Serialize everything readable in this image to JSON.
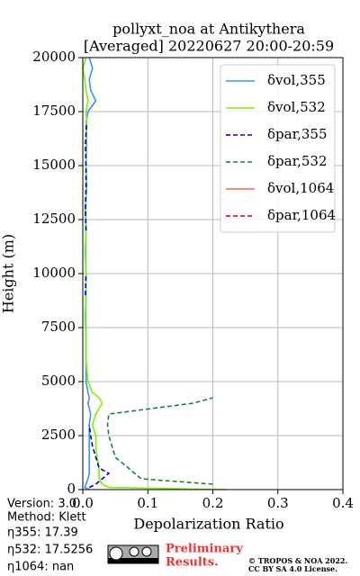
{
  "chart_data": {
    "type": "line",
    "title": "pollyxt_noa at Antikythera",
    "subtitle": "[Averaged] 20220627 20:00-20:59",
    "xlabel": "Depolarization Ratio",
    "ylabel": "Height (m)",
    "xlim": [
      0,
      0.4
    ],
    "xticks": [
      {
        "value": 0,
        "label": "0.0"
      },
      0.1,
      0.2,
      0.3,
      0.4
    ],
    "ylim": [
      0,
      20000
    ],
    "yticks": [
      0,
      2500,
      5000,
      7500,
      10000,
      12500,
      15000,
      17500,
      20000
    ],
    "grid": true,
    "legend": "upper right",
    "heights": [
      0,
      100,
      250,
      500,
      750,
      1000,
      1500,
      2000,
      2500,
      3000,
      3500,
      4000,
      4250,
      4500,
      5000,
      6000,
      7000,
      8000,
      9000,
      10000,
      11000,
      12000,
      13000,
      14000,
      15000,
      16000,
      17000,
      17500,
      18000,
      18500,
      19000,
      19500,
      20000
    ],
    "series": [
      {
        "name": "δvol,355",
        "color": "#3399ee",
        "dash": false,
        "values": [
          0.01,
          0.003,
          0.005,
          0.008,
          0.01,
          0.01,
          0.01,
          0.01,
          0.01,
          0.01,
          0.012,
          0.008,
          0.01,
          0.008,
          0.005,
          0.005,
          0.005,
          0.004,
          0.005,
          0.005,
          0.004,
          0.005,
          0.004,
          0.006,
          0.005,
          0.006,
          0.005,
          0.008,
          0.02,
          0.012,
          0.01,
          0.015,
          0.01
        ]
      },
      {
        "name": "δvol,532",
        "color": "#80f000",
        "dash": false,
        "values": [
          0.22,
          0.04,
          0.03,
          0.025,
          0.025,
          0.025,
          0.022,
          0.02,
          0.02,
          0.015,
          0.02,
          0.03,
          0.025,
          0.015,
          0.008,
          0.005,
          0.005,
          0.005,
          0.005,
          0.005,
          0.005,
          0.005,
          0.005,
          0.005,
          0.005,
          0.005,
          0.006,
          0.005,
          0.008,
          0.005,
          0.003,
          0.0,
          0.005
        ]
      },
      {
        "name": "δpar,355",
        "color": "#0000cc",
        "dash": true,
        "values": [
          null,
          0.01,
          0.02,
          0.03,
          0.04,
          0.025,
          0.02,
          0.015,
          0.012,
          0.01,
          null,
          null,
          null,
          null,
          null,
          null,
          null,
          null,
          0.004,
          0.005,
          null,
          0.005,
          0.004,
          0.005,
          0.005,
          0.004,
          0.006,
          null,
          null,
          null,
          null,
          null,
          null
        ]
      },
      {
        "name": "δpar,532",
        "color": "#1a8040",
        "dash": true,
        "values": [
          null,
          null,
          0.2,
          0.09,
          0.08,
          0.07,
          0.05,
          0.045,
          0.04,
          0.038,
          0.04,
          0.17,
          0.2,
          null,
          null,
          null,
          null,
          null,
          null,
          null,
          null,
          null,
          null,
          null,
          null,
          null,
          null,
          null,
          null,
          null,
          null,
          null,
          null
        ]
      },
      {
        "name": "δvol,1064",
        "color": "#ff6347",
        "dash": false,
        "values": [
          null,
          null,
          null,
          null,
          null,
          null,
          null,
          null,
          null,
          null,
          null,
          null,
          null,
          null,
          null,
          null,
          null,
          null,
          null,
          null,
          null,
          null,
          null,
          null,
          null,
          null,
          null,
          null,
          null,
          null,
          null,
          null,
          null
        ]
      },
      {
        "name": "δpar,1064",
        "color": "#cc0000",
        "dash": true,
        "values": [
          null,
          null,
          null,
          null,
          null,
          null,
          null,
          null,
          null,
          null,
          null,
          null,
          null,
          null,
          null,
          null,
          null,
          null,
          null,
          null,
          null,
          null,
          null,
          null,
          null,
          null,
          null,
          null,
          null,
          null,
          null,
          null,
          null
        ]
      }
    ]
  },
  "info": {
    "version": "Version: 3.0",
    "method": "Method: Klett",
    "eta355": "η355:  17.39",
    "eta532": "η532: 17.5256",
    "eta1064": "η1064:    nan"
  },
  "footer": {
    "preliminary": "Preliminary",
    "results": "Results.",
    "copyright": "© TROPOS & NOA 2022.",
    "license": "CC BY SA 4.0 License."
  }
}
